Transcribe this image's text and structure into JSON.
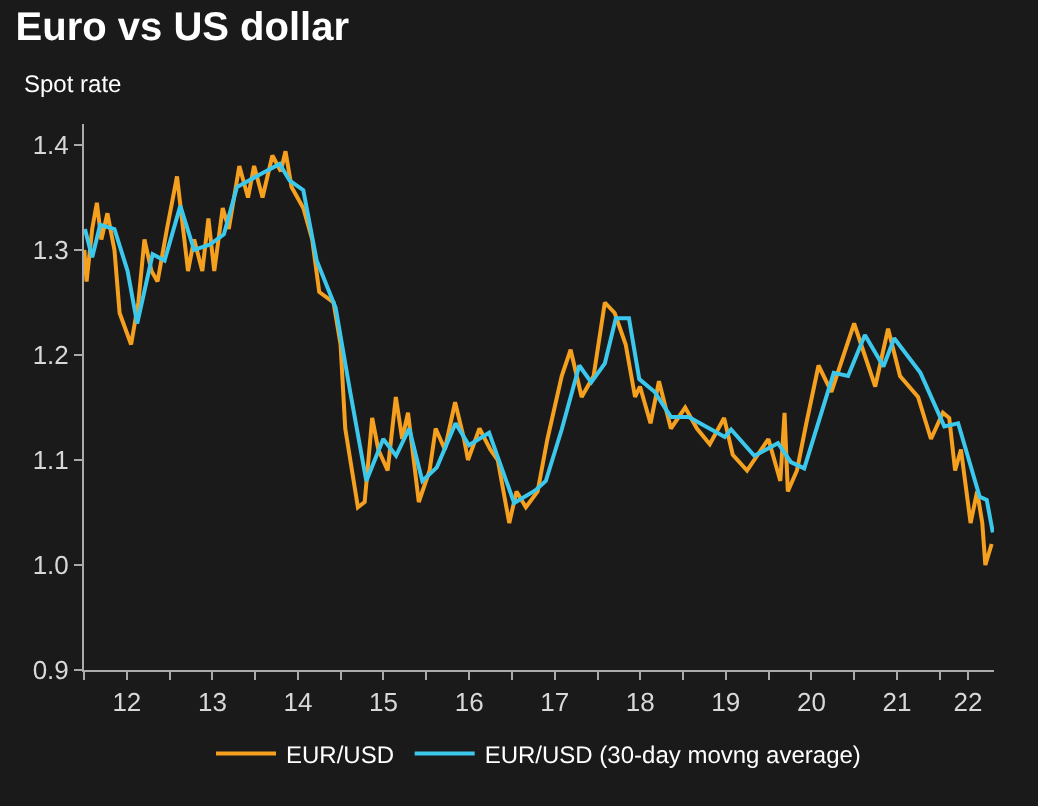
{
  "chart_data": {
    "type": "line",
    "title": "Euro vs US dollar",
    "subtitle": "Spot rate",
    "xlim": [
      "2012-01-01",
      "2022-08-20"
    ],
    "xticks": [
      {
        "value": "2012-01-01",
        "label": null
      },
      {
        "value": "2012-07-02",
        "label": "12"
      },
      {
        "value": "2013-01-01",
        "label": null
      },
      {
        "value": "2013-07-02",
        "label": "13"
      },
      {
        "value": "2014-01-01",
        "label": null
      },
      {
        "value": "2014-07-02",
        "label": "14"
      },
      {
        "value": "2015-01-01",
        "label": null
      },
      {
        "value": "2015-07-02",
        "label": "15"
      },
      {
        "value": "2016-01-01",
        "label": null
      },
      {
        "value": "2016-07-02",
        "label": "16"
      },
      {
        "value": "2017-01-01",
        "label": null
      },
      {
        "value": "2017-07-02",
        "label": "17"
      },
      {
        "value": "2018-01-01",
        "label": null
      },
      {
        "value": "2018-07-02",
        "label": "18"
      },
      {
        "value": "2019-01-01",
        "label": null
      },
      {
        "value": "2019-07-02",
        "label": "19"
      },
      {
        "value": "2020-01-01",
        "label": null
      },
      {
        "value": "2020-07-02",
        "label": "20"
      },
      {
        "value": "2021-01-01",
        "label": null
      },
      {
        "value": "2021-07-02",
        "label": "21"
      },
      {
        "value": "2022-01-01",
        "label": null
      },
      {
        "value": "2022-05-01",
        "label": "22"
      }
    ],
    "ylim": [
      0.9,
      1.42
    ],
    "yticks": [
      0.9,
      {
        "value": 1,
        "label": "1.0"
      },
      1.1,
      1.2,
      1.3,
      1.4
    ],
    "grid": false,
    "legend": "bottom",
    "marker": "none",
    "line_style": "solid",
    "series": [
      {
        "name": "EUR/USD",
        "color": "#f5a01e",
        "x": [
          "2012-01-02",
          "2012-01-12",
          "2012-02-05",
          "2012-02-25",
          "2012-03-15",
          "2012-04-10",
          "2012-05-10",
          "2012-06-01",
          "2012-07-20",
          "2012-08-20",
          "2012-09-15",
          "2012-10-15",
          "2012-11-10",
          "2012-12-20",
          "2013-02-01",
          "2013-03-20",
          "2013-04-15",
          "2013-05-20",
          "2013-06-15",
          "2013-07-10",
          "2013-08-15",
          "2013-09-10",
          "2013-10-25",
          "2013-12-01",
          "2013-12-27",
          "2014-02-01",
          "2014-03-15",
          "2014-04-20",
          "2014-05-10",
          "2014-06-05",
          "2014-07-25",
          "2014-09-01",
          "2014-10-01",
          "2014-12-01",
          "2014-12-31",
          "2015-01-20",
          "2015-03-15",
          "2015-04-13",
          "2015-05-15",
          "2015-06-10",
          "2015-07-20",
          "2015-08-24",
          "2015-09-20",
          "2015-10-15",
          "2015-11-30",
          "2016-01-15",
          "2016-02-10",
          "2016-03-20",
          "2016-05-03",
          "2016-06-10",
          "2016-06-27",
          "2016-08-15",
          "2016-09-30",
          "2016-11-01",
          "2016-12-20",
          "2017-01-20",
          "2017-03-01",
          "2017-04-20",
          "2017-06-01",
          "2017-08-01",
          "2017-09-08",
          "2017-10-25",
          "2017-12-15",
          "2018-02-01",
          "2018-03-15",
          "2018-05-01",
          "2018-06-10",
          "2018-07-01",
          "2018-08-15",
          "2018-09-20",
          "2018-11-10",
          "2019-01-10",
          "2019-03-01",
          "2019-04-25",
          "2019-06-25",
          "2019-08-01",
          "2019-10-01",
          "2019-12-31",
          "2020-02-20",
          "2020-03-09",
          "2020-03-23",
          "2020-05-01",
          "2020-06-10",
          "2020-08-01",
          "2020-09-25",
          "2020-12-31",
          "2021-03-31",
          "2021-05-25",
          "2021-07-15",
          "2021-09-30",
          "2021-11-24",
          "2022-01-14",
          "2022-02-10",
          "2022-03-07",
          "2022-04-01",
          "2022-05-12",
          "2022-06-09",
          "2022-07-01",
          "2022-07-14",
          "2022-08-10"
        ],
        "values": [
          1.3,
          1.27,
          1.32,
          1.345,
          1.31,
          1.335,
          1.3,
          1.24,
          1.21,
          1.25,
          1.31,
          1.28,
          1.27,
          1.32,
          1.37,
          1.28,
          1.31,
          1.28,
          1.33,
          1.28,
          1.34,
          1.32,
          1.38,
          1.35,
          1.38,
          1.35,
          1.39,
          1.375,
          1.394,
          1.36,
          1.34,
          1.31,
          1.26,
          1.25,
          1.21,
          1.13,
          1.055,
          1.06,
          1.14,
          1.11,
          1.09,
          1.16,
          1.12,
          1.145,
          1.06,
          1.09,
          1.13,
          1.11,
          1.155,
          1.12,
          1.1,
          1.13,
          1.11,
          1.1,
          1.04,
          1.07,
          1.055,
          1.07,
          1.12,
          1.18,
          1.205,
          1.16,
          1.18,
          1.25,
          1.24,
          1.21,
          1.16,
          1.17,
          1.135,
          1.175,
          1.13,
          1.15,
          1.13,
          1.115,
          1.14,
          1.105,
          1.09,
          1.12,
          1.08,
          1.145,
          1.07,
          1.09,
          1.135,
          1.19,
          1.165,
          1.23,
          1.17,
          1.225,
          1.18,
          1.16,
          1.12,
          1.145,
          1.14,
          1.09,
          1.11,
          1.04,
          1.07,
          1.04,
          1.0,
          1.02
        ]
      },
      {
        "name": "EUR/USD (30-day movng average)",
        "color": "#3cc8ec",
        "x": [
          "2012-01-05",
          "2012-02-05",
          "2012-03-10",
          "2012-05-10",
          "2012-07-05",
          "2012-08-15",
          "2012-10-20",
          "2012-12-10",
          "2013-02-15",
          "2013-04-15",
          "2013-06-20",
          "2013-08-20",
          "2013-10-15",
          "2014-01-05",
          "2014-04-15",
          "2014-05-28",
          "2014-07-25",
          "2014-09-20",
          "2014-12-10",
          "2015-02-10",
          "2015-04-20",
          "2015-07-01",
          "2015-08-25",
          "2015-10-20",
          "2015-12-15",
          "2016-02-15",
          "2016-05-05",
          "2016-07-01",
          "2016-09-25",
          "2017-01-10",
          "2017-04-10",
          "2017-05-25",
          "2017-08-01",
          "2017-10-15",
          "2017-12-05",
          "2018-02-01",
          "2018-03-20",
          "2018-05-15",
          "2018-06-28",
          "2018-09-01",
          "2018-11-10",
          "2019-01-25",
          "2019-06-28",
          "2019-07-25",
          "2019-11-01",
          "2020-02-10",
          "2020-04-05",
          "2020-06-01",
          "2020-10-05",
          "2020-12-05",
          "2021-02-15",
          "2021-05-05",
          "2021-06-20",
          "2021-10-10",
          "2022-01-20",
          "2022-03-20",
          "2022-06-20",
          "2022-07-20",
          "2022-08-15"
        ],
        "values": [
          1.32,
          1.293,
          1.324,
          1.32,
          1.28,
          1.23,
          1.296,
          1.29,
          1.342,
          1.3,
          1.305,
          1.315,
          1.36,
          1.37,
          1.382,
          1.366,
          1.357,
          1.29,
          1.245,
          1.165,
          1.08,
          1.12,
          1.104,
          1.13,
          1.08,
          1.093,
          1.135,
          1.114,
          1.126,
          1.059,
          1.071,
          1.08,
          1.129,
          1.19,
          1.174,
          1.192,
          1.235,
          1.235,
          1.177,
          1.165,
          1.141,
          1.141,
          1.122,
          1.129,
          1.104,
          1.116,
          1.098,
          1.092,
          1.183,
          1.18,
          1.219,
          1.189,
          1.216,
          1.183,
          1.132,
          1.135,
          1.065,
          1.062,
          1.031
        ]
      }
    ]
  }
}
